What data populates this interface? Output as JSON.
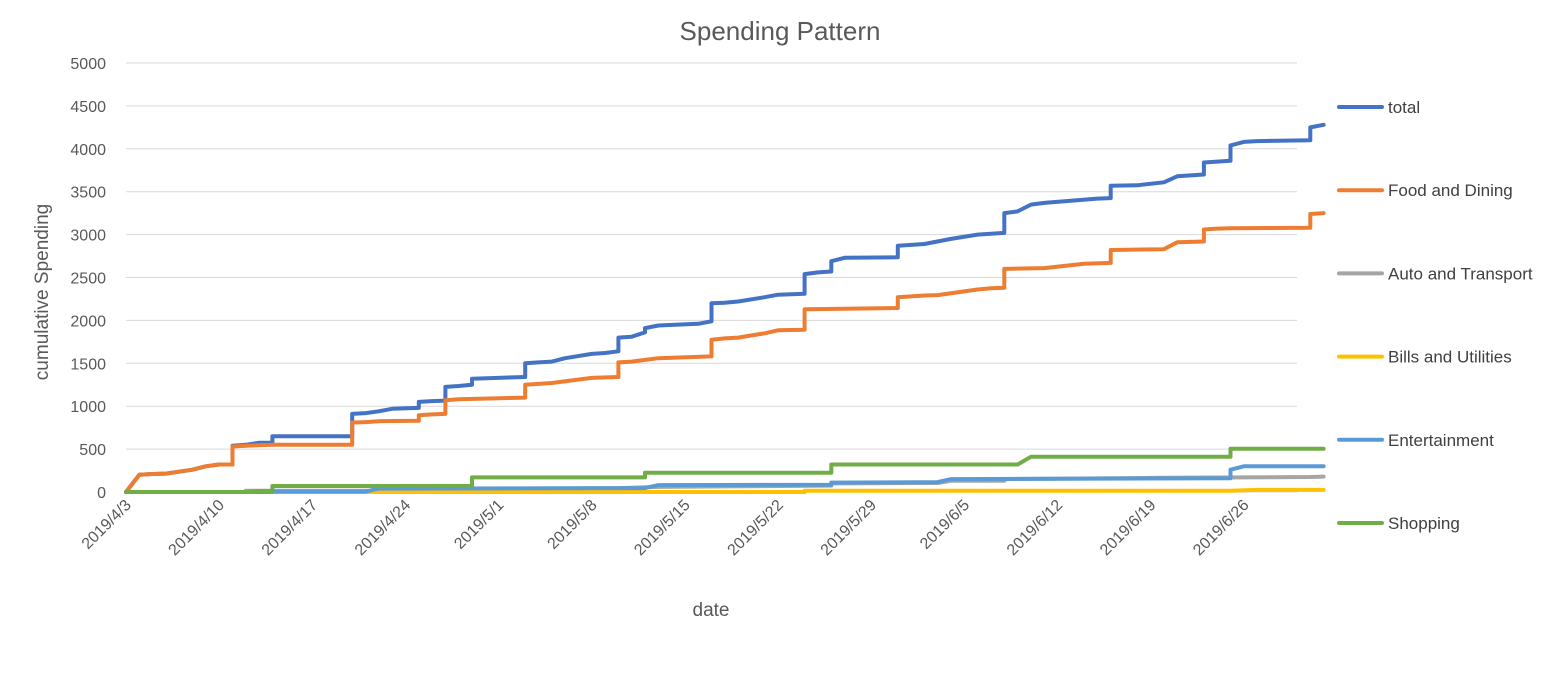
{
  "chart_data": {
    "type": "line",
    "title": "Spending Pattern",
    "xlabel": "date",
    "ylabel": "cumulative Spending",
    "ylim": [
      0,
      5000
    ],
    "yticks": [
      0,
      500,
      1000,
      1500,
      2000,
      2500,
      3000,
      3500,
      4000,
      4500,
      5000
    ],
    "xlim": [
      "2019/4/3",
      "2019/6/30"
    ],
    "xticks": [
      "2019/4/3",
      "2019/4/10",
      "2019/4/17",
      "2019/4/24",
      "2019/5/1",
      "2019/5/8",
      "2019/5/15",
      "2019/5/22",
      "2019/5/29",
      "2019/6/5",
      "2019/6/12",
      "2019/6/19",
      "2019/6/26"
    ],
    "grid": true,
    "legend_position": "right",
    "series": [
      {
        "name": "total",
        "color": "#4472c4",
        "points": [
          [
            "2019/4/3",
            0
          ],
          [
            "2019/4/4",
            200
          ],
          [
            "2019/4/5",
            210
          ],
          [
            "2019/4/6",
            215
          ],
          [
            "2019/4/8",
            260
          ],
          [
            "2019/4/9",
            300
          ],
          [
            "2019/4/10",
            320
          ],
          [
            "2019/4/11",
            320
          ],
          [
            "2019/4/11",
            540
          ],
          [
            "2019/4/12",
            550
          ],
          [
            "2019/4/13",
            575
          ],
          [
            "2019/4/14",
            575
          ],
          [
            "2019/4/14",
            650
          ],
          [
            "2019/4/20",
            650
          ],
          [
            "2019/4/20",
            910
          ],
          [
            "2019/4/21",
            920
          ],
          [
            "2019/4/22",
            940
          ],
          [
            "2019/4/23",
            970
          ],
          [
            "2019/4/25",
            980
          ],
          [
            "2019/4/25",
            1050
          ],
          [
            "2019/4/26",
            1060
          ],
          [
            "2019/4/27",
            1065
          ],
          [
            "2019/4/27",
            1225
          ],
          [
            "2019/4/28",
            1235
          ],
          [
            "2019/4/29",
            1250
          ],
          [
            "2019/4/29",
            1320
          ],
          [
            "2019/5/3",
            1340
          ],
          [
            "2019/5/3",
            1500
          ],
          [
            "2019/5/4",
            1510
          ],
          [
            "2019/5/5",
            1520
          ],
          [
            "2019/5/6",
            1560
          ],
          [
            "2019/5/8",
            1610
          ],
          [
            "2019/5/9",
            1620
          ],
          [
            "2019/5/10",
            1640
          ],
          [
            "2019/5/10",
            1800
          ],
          [
            "2019/5/11",
            1810
          ],
          [
            "2019/5/12",
            1860
          ],
          [
            "2019/5/12",
            1910
          ],
          [
            "2019/5/13",
            1940
          ],
          [
            "2019/5/16",
            1960
          ],
          [
            "2019/5/17",
            1990
          ],
          [
            "2019/5/17",
            2200
          ],
          [
            "2019/5/18",
            2205
          ],
          [
            "2019/5/19",
            2220
          ],
          [
            "2019/5/21",
            2270
          ],
          [
            "2019/5/22",
            2300
          ],
          [
            "2019/5/24",
            2310
          ],
          [
            "2019/5/24",
            2540
          ],
          [
            "2019/5/25",
            2560
          ],
          [
            "2019/5/26",
            2570
          ],
          [
            "2019/5/26",
            2690
          ],
          [
            "2019/5/27",
            2730
          ],
          [
            "2019/5/31",
            2735
          ],
          [
            "2019/5/31",
            2870
          ],
          [
            "2019/6/1",
            2880
          ],
          [
            "2019/6/2",
            2890
          ],
          [
            "2019/6/4",
            2950
          ],
          [
            "2019/6/6",
            3000
          ],
          [
            "2019/6/8",
            3020
          ],
          [
            "2019/6/8",
            3250
          ],
          [
            "2019/6/9",
            3270
          ],
          [
            "2019/6/10",
            3350
          ],
          [
            "2019/6/11",
            3370
          ],
          [
            "2019/6/15",
            3420
          ],
          [
            "2019/6/16",
            3425
          ],
          [
            "2019/6/16",
            3570
          ],
          [
            "2019/6/18",
            3575
          ],
          [
            "2019/6/20",
            3610
          ],
          [
            "2019/6/21",
            3680
          ],
          [
            "2019/6/23",
            3700
          ],
          [
            "2019/6/23",
            3840
          ],
          [
            "2019/6/25",
            3860
          ],
          [
            "2019/6/25",
            4040
          ],
          [
            "2019/6/26",
            4080
          ],
          [
            "2019/6/27",
            4090
          ],
          [
            "2019/7/1",
            4100
          ],
          [
            "2019/7/1",
            4250
          ],
          [
            "2019/7/2",
            4280
          ]
        ]
      },
      {
        "name": "Food and Dining",
        "color": "#ed7d31",
        "points": [
          [
            "2019/4/3",
            0
          ],
          [
            "2019/4/4",
            200
          ],
          [
            "2019/4/5",
            210
          ],
          [
            "2019/4/6",
            215
          ],
          [
            "2019/4/8",
            260
          ],
          [
            "2019/4/9",
            300
          ],
          [
            "2019/4/10",
            320
          ],
          [
            "2019/4/11",
            320
          ],
          [
            "2019/4/11",
            530
          ],
          [
            "2019/4/12",
            540
          ],
          [
            "2019/4/14",
            550
          ],
          [
            "2019/4/20",
            550
          ],
          [
            "2019/4/20",
            810
          ],
          [
            "2019/4/21",
            815
          ],
          [
            "2019/4/22",
            825
          ],
          [
            "2019/4/25",
            830
          ],
          [
            "2019/4/25",
            895
          ],
          [
            "2019/4/26",
            905
          ],
          [
            "2019/4/27",
            910
          ],
          [
            "2019/4/27",
            1070
          ],
          [
            "2019/4/28",
            1080
          ],
          [
            "2019/5/3",
            1100
          ],
          [
            "2019/5/3",
            1250
          ],
          [
            "2019/5/4",
            1260
          ],
          [
            "2019/5/5",
            1270
          ],
          [
            "2019/5/8",
            1330
          ],
          [
            "2019/5/10",
            1340
          ],
          [
            "2019/5/10",
            1510
          ],
          [
            "2019/5/11",
            1520
          ],
          [
            "2019/5/13",
            1560
          ],
          [
            "2019/5/17",
            1580
          ],
          [
            "2019/5/17",
            1775
          ],
          [
            "2019/5/18",
            1790
          ],
          [
            "2019/5/19",
            1800
          ],
          [
            "2019/5/21",
            1850
          ],
          [
            "2019/5/22",
            1885
          ],
          [
            "2019/5/24",
            1890
          ],
          [
            "2019/5/24",
            2130
          ],
          [
            "2019/5/27",
            2135
          ],
          [
            "2019/5/31",
            2145
          ],
          [
            "2019/5/31",
            2270
          ],
          [
            "2019/6/1",
            2280
          ],
          [
            "2019/6/2",
            2290
          ],
          [
            "2019/6/3",
            2295
          ],
          [
            "2019/6/6",
            2360
          ],
          [
            "2019/6/7",
            2375
          ],
          [
            "2019/6/8",
            2380
          ],
          [
            "2019/6/8",
            2600
          ],
          [
            "2019/6/11",
            2610
          ],
          [
            "2019/6/14",
            2660
          ],
          [
            "2019/6/16",
            2670
          ],
          [
            "2019/6/16",
            2820
          ],
          [
            "2019/6/20",
            2830
          ],
          [
            "2019/6/21",
            2910
          ],
          [
            "2019/6/23",
            2920
          ],
          [
            "2019/6/23",
            3060
          ],
          [
            "2019/6/24",
            3070
          ],
          [
            "2019/6/25",
            3075
          ],
          [
            "2019/7/1",
            3080
          ],
          [
            "2019/7/1",
            3100
          ],
          [
            "2019/7/1",
            3240
          ],
          [
            "2019/7/2",
            3250
          ]
        ]
      },
      {
        "name": "Auto and Transport",
        "color": "#a5a5a5",
        "points": [
          [
            "2019/4/3",
            0
          ],
          [
            "2019/4/12",
            0
          ],
          [
            "2019/4/12",
            15
          ],
          [
            "2019/4/22",
            15
          ],
          [
            "2019/4/22",
            30
          ],
          [
            "2019/5/3",
            40
          ],
          [
            "2019/5/10",
            45
          ],
          [
            "2019/5/13",
            60
          ],
          [
            "2019/5/26",
            75
          ],
          [
            "2019/5/26",
            100
          ],
          [
            "2019/6/3",
            105
          ],
          [
            "2019/6/4",
            130
          ],
          [
            "2019/6/8",
            130
          ],
          [
            "2019/6/8",
            150
          ],
          [
            "2019/6/20",
            165
          ],
          [
            "2019/7/1",
            175
          ],
          [
            "2019/7/2",
            180
          ]
        ]
      },
      {
        "name": "Bills and Utilities",
        "color": "#ffc000",
        "points": [
          [
            "2019/4/3",
            0
          ],
          [
            "2019/5/24",
            0
          ],
          [
            "2019/5/24",
            15
          ],
          [
            "2019/6/25",
            15
          ],
          [
            "2019/6/27",
            25
          ],
          [
            "2019/7/2",
            25
          ]
        ]
      },
      {
        "name": "Entertainment",
        "color": "#5b9bd5",
        "points": [
          [
            "2019/4/3",
            0
          ],
          [
            "2019/4/14",
            0
          ],
          [
            "2019/4/14",
            5
          ],
          [
            "2019/4/21",
            5
          ],
          [
            "2019/4/22",
            40
          ],
          [
            "2019/5/12",
            45
          ],
          [
            "2019/5/13",
            80
          ],
          [
            "2019/5/26",
            85
          ],
          [
            "2019/5/26",
            110
          ],
          [
            "2019/6/3",
            115
          ],
          [
            "2019/6/4",
            150
          ],
          [
            "2019/6/25",
            160
          ],
          [
            "2019/6/25",
            260
          ],
          [
            "2019/6/26",
            300
          ],
          [
            "2019/7/2",
            300
          ]
        ]
      },
      {
        "name": "Shopping",
        "color": "#70ad47",
        "points": [
          [
            "2019/4/3",
            0
          ],
          [
            "2019/4/12",
            0
          ],
          [
            "2019/4/13",
            10
          ],
          [
            "2019/4/14",
            10
          ],
          [
            "2019/4/14",
            70
          ],
          [
            "2019/4/29",
            70
          ],
          [
            "2019/4/29",
            170
          ],
          [
            "2019/5/12",
            170
          ],
          [
            "2019/5/12",
            225
          ],
          [
            "2019/5/26",
            225
          ],
          [
            "2019/5/26",
            320
          ],
          [
            "2019/6/9",
            320
          ],
          [
            "2019/6/10",
            410
          ],
          [
            "2019/6/25",
            410
          ],
          [
            "2019/6/25",
            505
          ],
          [
            "2019/7/2",
            505
          ]
        ]
      }
    ]
  }
}
